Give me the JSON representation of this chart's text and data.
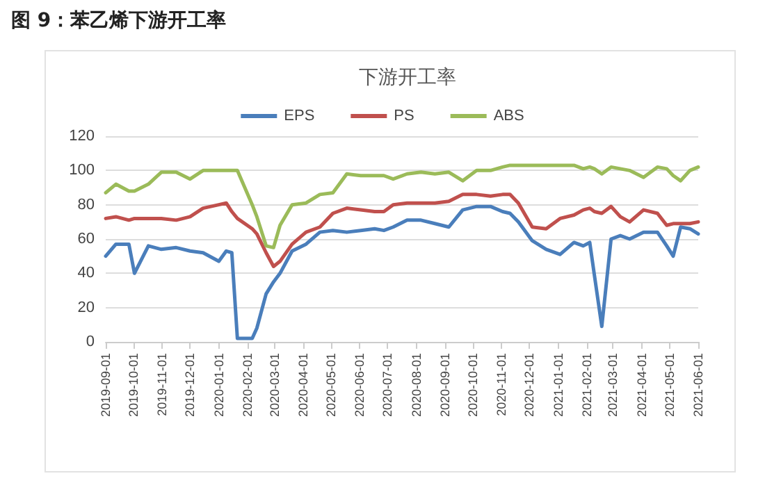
{
  "chart_data": {
    "type": "line",
    "title": "图 9：苯乙烯下游开工率",
    "subtitle": "下游开工率",
    "x": [
      "2019-09-01",
      "2019-09-12",
      "2019-09-26",
      "2019-10-02",
      "2019-10-17",
      "2019-10-31",
      "2019-11-16",
      "2019-12-01",
      "2019-12-15",
      "2020-01-01",
      "2020-01-09",
      "2020-01-15",
      "2020-01-21",
      "2020-02-06",
      "2020-02-11",
      "2020-02-21",
      "2020-02-29",
      "2020-03-07",
      "2020-03-20",
      "2020-04-04",
      "2020-04-19",
      "2020-05-03",
      "2020-05-18",
      "2020-06-02",
      "2020-06-17",
      "2020-06-27",
      "2020-07-07",
      "2020-07-22",
      "2020-08-06",
      "2020-08-21",
      "2020-09-05",
      "2020-09-20",
      "2020-10-05",
      "2020-10-20",
      "2020-11-02",
      "2020-11-10",
      "2020-11-19",
      "2020-12-04",
      "2020-12-19",
      "2021-01-03",
      "2021-01-18",
      "2021-01-28",
      "2021-02-04",
      "2021-02-09",
      "2021-02-17",
      "2021-02-27",
      "2021-03-09",
      "2021-03-19",
      "2021-04-03",
      "2021-04-18",
      "2021-04-28",
      "2021-05-05",
      "2021-05-13",
      "2021-05-23",
      "2021-06-01"
    ],
    "series": [
      {
        "name": "EPS",
        "color": "#4a7ebb",
        "values": [
          50,
          57,
          57,
          40,
          56,
          54,
          55,
          53,
          52,
          47,
          53,
          52,
          2,
          2,
          8,
          28,
          35,
          40,
          53,
          57,
          64,
          65,
          64,
          65,
          66,
          65,
          67,
          71,
          71,
          69,
          67,
          77,
          79,
          79,
          76,
          75,
          70,
          59,
          54,
          51,
          58,
          56,
          58,
          39,
          9,
          60,
          62,
          60,
          64,
          64,
          56,
          50,
          67,
          66,
          63
        ]
      },
      {
        "name": "PS",
        "color": "#c0504d",
        "values": [
          72,
          73,
          71,
          72,
          72,
          72,
          71,
          73,
          78,
          80,
          81,
          76,
          72,
          66,
          63,
          52,
          44,
          47,
          57,
          64,
          67,
          75,
          78,
          77,
          76,
          76,
          80,
          81,
          81,
          81,
          82,
          86,
          86,
          85,
          86,
          86,
          81,
          67,
          66,
          72,
          74,
          77,
          78,
          76,
          75,
          79,
          73,
          70,
          77,
          75,
          68,
          69,
          69,
          69,
          70
        ]
      },
      {
        "name": "ABS",
        "color": "#9bbb59",
        "values": [
          87,
          92,
          88,
          88,
          92,
          99,
          99,
          95,
          100,
          100,
          100,
          100,
          100,
          80,
          73,
          56,
          55,
          68,
          80,
          81,
          86,
          87,
          98,
          97,
          97,
          97,
          95,
          98,
          99,
          98,
          99,
          94,
          100,
          100,
          102,
          103,
          103,
          103,
          103,
          103,
          103,
          101,
          102,
          101,
          98,
          102,
          101,
          100,
          96,
          102,
          101,
          97,
          94,
          100,
          102
        ]
      }
    ],
    "xlim": [
      "2019-09-01",
      "2021-06-01"
    ],
    "xticks": [
      "2019-09-01",
      "2019-10-01",
      "2019-11-01",
      "2019-12-01",
      "2020-01-01",
      "2020-02-01",
      "2020-03-01",
      "2020-04-01",
      "2020-05-01",
      "2020-06-01",
      "2020-07-01",
      "2020-08-01",
      "2020-09-01",
      "2020-10-01",
      "2020-11-01",
      "2020-12-01",
      "2021-01-01",
      "2021-02-01",
      "2021-03-01",
      "2021-04-01",
      "2021-05-01",
      "2021-06-01"
    ],
    "ylim": [
      0,
      120
    ],
    "yticks": [
      0,
      20,
      40,
      60,
      80,
      100,
      120
    ],
    "grid": "y",
    "legend": "top",
    "marker": "none",
    "line_style": "solid"
  }
}
